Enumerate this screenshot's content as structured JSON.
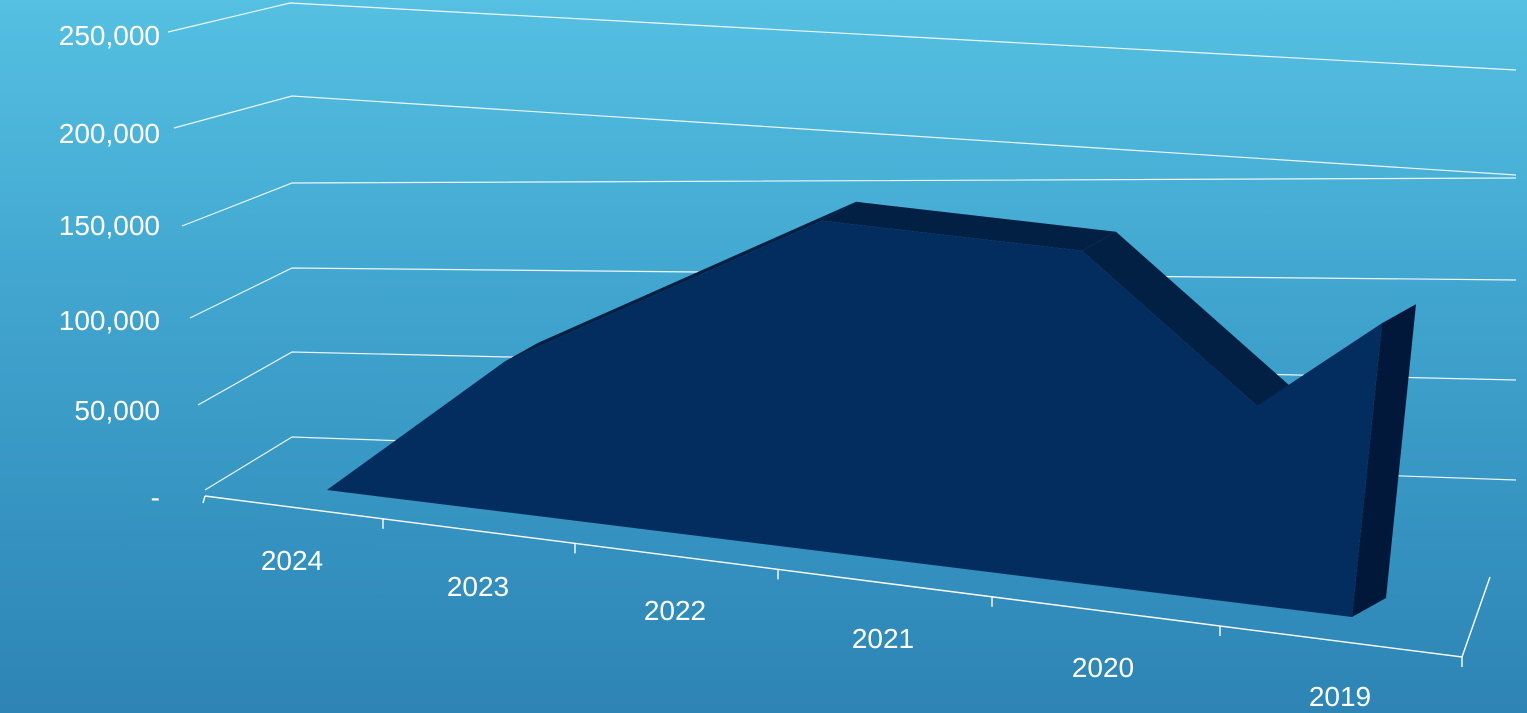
{
  "chart_data": {
    "type": "area",
    "categories": [
      "2024",
      "2023",
      "2022",
      "2021",
      "2020",
      "2019"
    ],
    "values": [
      0,
      100000,
      200000,
      190000,
      108000,
      165000
    ],
    "ylim": [
      0,
      250000
    ],
    "yticks": [
      "-",
      "50,000",
      "100,000",
      "150,000",
      "200,000",
      "250,000"
    ],
    "grid": true,
    "legend": "none",
    "colors": {
      "area_front": "#032d5e",
      "area_top": "#021f44",
      "area_side": "#01183a",
      "text": "#ffffff",
      "grid": "#ffffff"
    }
  }
}
